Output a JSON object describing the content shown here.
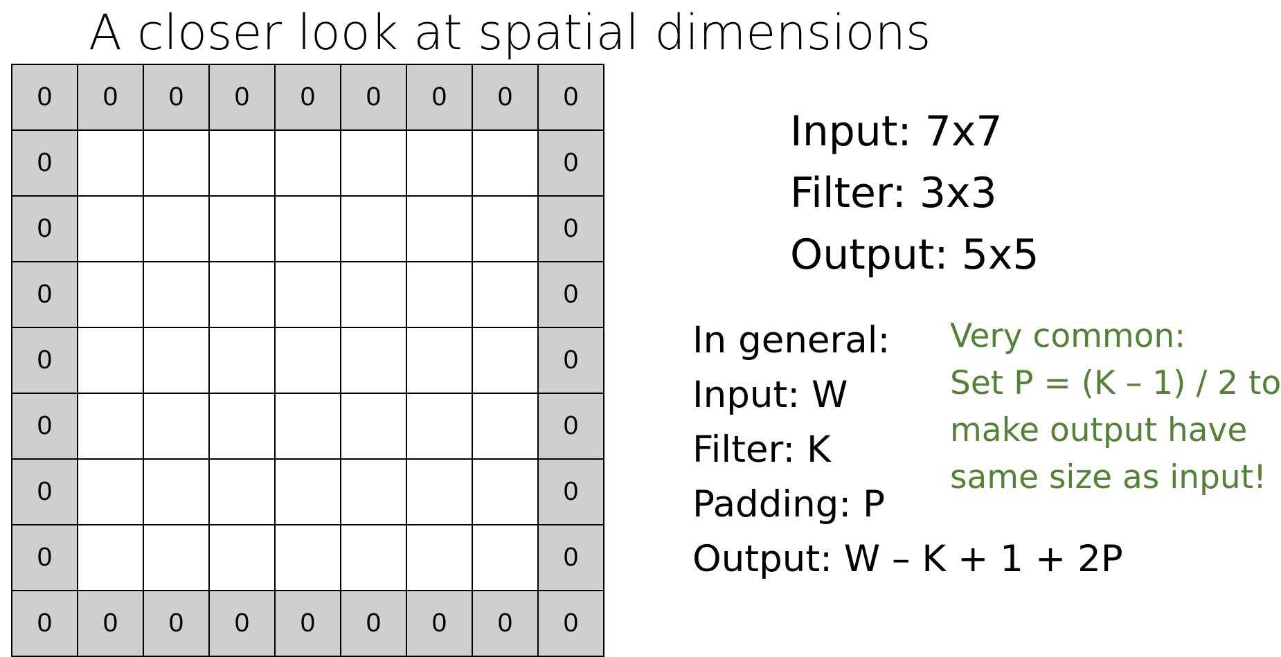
{
  "title": "A closer look at spatial dimensions",
  "grid": {
    "rows": 9,
    "cols": 9,
    "pad_value": "0",
    "pad_color": "#d0cece",
    "inner_color": "#ffffff"
  },
  "spec": {
    "input": "Input: 7x7",
    "filter": "Filter: 3x3",
    "output": "Output: 5x5"
  },
  "general": {
    "heading": "In general:",
    "input": "Input: W",
    "filter": "Filter: K",
    "padding": "Padding: P",
    "output": "Output: W – K + 1 + 2P"
  },
  "note": {
    "color": "#538135",
    "lines": [
      "Very common:",
      "Set P = (K – 1) / 2 to",
      "make output have",
      "same size as input!"
    ]
  }
}
